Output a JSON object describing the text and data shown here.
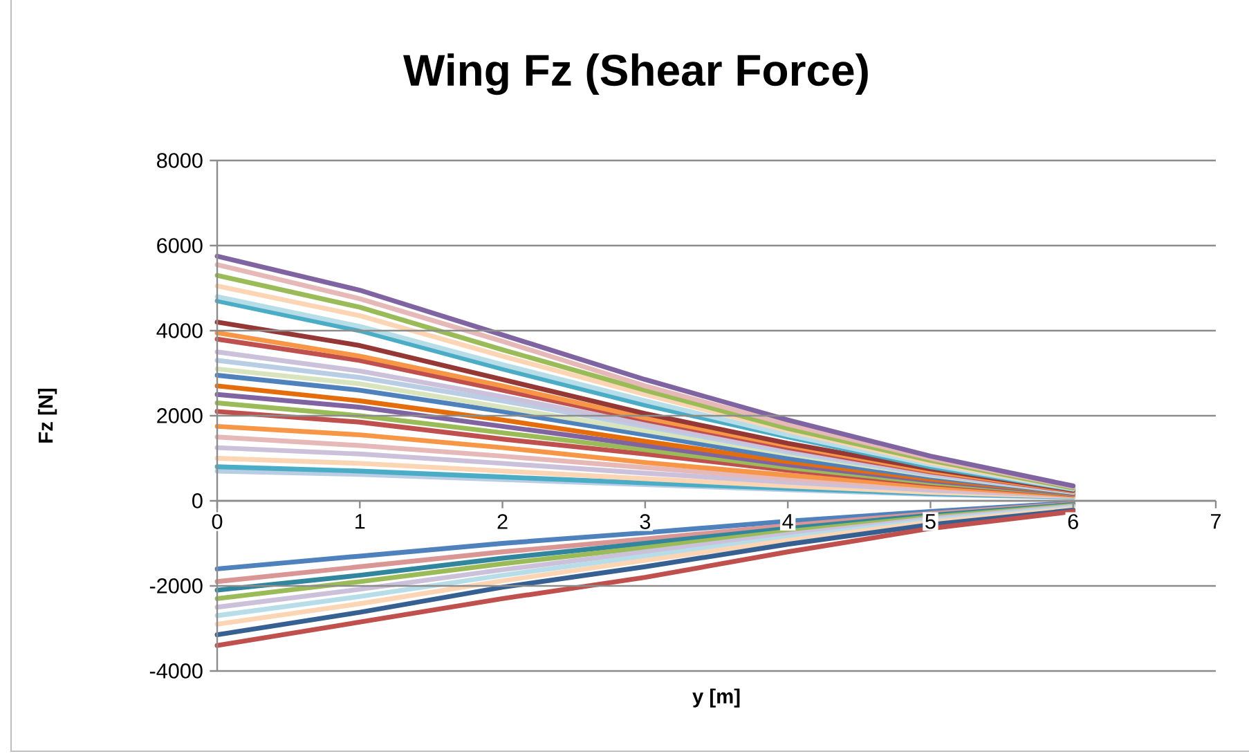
{
  "chart_data": {
    "type": "line",
    "title": "Wing Fz (Shear Force)",
    "xlabel": "y [m]",
    "ylabel": "Fz [N]",
    "x": [
      0,
      1,
      2,
      3,
      4,
      5,
      6
    ],
    "xlim": [
      0,
      7
    ],
    "ylim": [
      -4000,
      8000
    ],
    "xticks": [
      0,
      1,
      2,
      3,
      4,
      5,
      6,
      7
    ],
    "yticks": [
      -4000,
      -2000,
      0,
      2000,
      4000,
      6000,
      8000
    ],
    "grid": "y",
    "series": [
      {
        "color": "#b9cde5",
        "values": [
          700,
          620,
          500,
          380,
          260,
          150,
          80
        ]
      },
      {
        "color": "#4bacc6",
        "values": [
          800,
          700,
          560,
          420,
          290,
          170,
          90
        ]
      },
      {
        "color": "#fcd5b5",
        "values": [
          1000,
          880,
          700,
          520,
          350,
          200,
          100
        ]
      },
      {
        "color": "#ccc1da",
        "values": [
          1250,
          1100,
          880,
          650,
          440,
          250,
          110
        ]
      },
      {
        "color": "#e6b9b8",
        "values": [
          1500,
          1300,
          1050,
          780,
          520,
          300,
          120
        ]
      },
      {
        "color": "#f79646",
        "values": [
          1750,
          1550,
          1250,
          900,
          600,
          340,
          130
        ]
      },
      {
        "color": "#c0504d",
        "values": [
          2100,
          1850,
          1450,
          1100,
          720,
          400,
          150
        ]
      },
      {
        "color": "#9bbb59",
        "values": [
          2300,
          2000,
          1600,
          1200,
          780,
          430,
          160
        ]
      },
      {
        "color": "#8064a2",
        "values": [
          2500,
          2200,
          1750,
          1300,
          850,
          470,
          170
        ]
      },
      {
        "color": "#e46c0a",
        "values": [
          2700,
          2350,
          1900,
          1400,
          920,
          510,
          180
        ]
      },
      {
        "color": "#4f81bd",
        "values": [
          2950,
          2600,
          2100,
          1550,
          1000,
          560,
          190
        ]
      },
      {
        "color": "#d7e4bd",
        "values": [
          3100,
          2750,
          2200,
          1650,
          1100,
          600,
          200
        ]
      },
      {
        "color": "#b9cde5",
        "values": [
          3300,
          2900,
          2350,
          1750,
          1150,
          620,
          210
        ]
      },
      {
        "color": "#ccc1da",
        "values": [
          3500,
          3050,
          2450,
          1800,
          1200,
          650,
          220
        ]
      },
      {
        "color": "#c0504d",
        "values": [
          3800,
          3300,
          2600,
          1900,
          1250,
          680,
          230
        ]
      },
      {
        "color": "#f79646",
        "values": [
          3950,
          3400,
          2700,
          1950,
          1300,
          700,
          240
        ]
      },
      {
        "color": "#953735",
        "values": [
          4200,
          3650,
          2850,
          2050,
          1350,
          750,
          250
        ]
      },
      {
        "color": "#4bacc6",
        "values": [
          4700,
          4000,
          3100,
          2250,
          1500,
          800,
          270
        ]
      },
      {
        "color": "#b7dee8",
        "values": [
          4800,
          4100,
          3200,
          2350,
          1550,
          850,
          280
        ]
      },
      {
        "color": "#fcd5b5",
        "values": [
          5050,
          4350,
          3400,
          2500,
          1650,
          900,
          300
        ]
      },
      {
        "color": "#9bbb59",
        "values": [
          5300,
          4550,
          3550,
          2600,
          1700,
          950,
          300
        ]
      },
      {
        "color": "#e6b9b8",
        "values": [
          5550,
          4750,
          3750,
          2700,
          1800,
          1000,
          330
        ]
      },
      {
        "color": "#8064a2",
        "values": [
          5750,
          4950,
          3900,
          2850,
          1900,
          1050,
          350
        ]
      },
      {
        "color": "#4f81bd",
        "values": [
          -1600,
          -1300,
          -1000,
          -750,
          -480,
          -250,
          -50
        ]
      },
      {
        "color": "#d99694",
        "values": [
          -1900,
          -1550,
          -1200,
          -900,
          -580,
          -300,
          -70
        ]
      },
      {
        "color": "#31859c",
        "values": [
          -2100,
          -1750,
          -1350,
          -1000,
          -650,
          -340,
          -90
        ]
      },
      {
        "color": "#9bbb59",
        "values": [
          -2300,
          -1900,
          -1480,
          -1100,
          -720,
          -380,
          -110
        ]
      },
      {
        "color": "#ccc1da",
        "values": [
          -2500,
          -2080,
          -1620,
          -1200,
          -790,
          -420,
          -130
        ]
      },
      {
        "color": "#b7dee8",
        "values": [
          -2700,
          -2250,
          -1750,
          -1300,
          -860,
          -460,
          -160
        ]
      },
      {
        "color": "#fcd5b5",
        "values": [
          -2900,
          -2420,
          -1880,
          -1400,
          -930,
          -500,
          -190
        ]
      },
      {
        "color": "#376092",
        "values": [
          -3150,
          -2620,
          -2030,
          -1550,
          -1020,
          -560,
          -220
        ]
      },
      {
        "color": "#c0504d",
        "values": [
          -3400,
          -2850,
          -2300,
          -1800,
          -1200,
          -650,
          -250
        ]
      }
    ]
  }
}
